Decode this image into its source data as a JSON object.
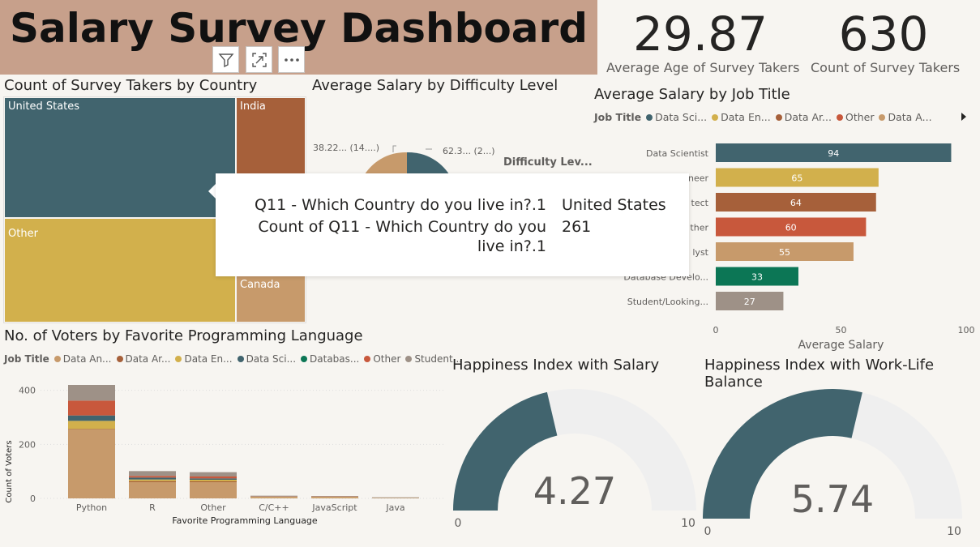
{
  "header": {
    "title": "Salary Survey Dashboard"
  },
  "toolbar": {
    "filter_icon": "filter-icon",
    "focus_icon": "focus-mode-icon",
    "more_icon": "more-options-icon"
  },
  "kpis": [
    {
      "value": "29.87",
      "label": "Average Age of Survey Takers"
    },
    {
      "value": "630",
      "label": "Count of Survey Takers"
    }
  ],
  "treemap": {
    "title": "Count of Survey Takers by Country",
    "tiles": [
      {
        "label": "United States",
        "color": "#41646e"
      },
      {
        "label": "India",
        "color": "#a6603a"
      },
      {
        "label": "Other",
        "color": "#d2b04c"
      },
      {
        "label": "Canada",
        "color": "#c79a6b"
      }
    ]
  },
  "tooltip": {
    "row1_label": "Q11 - Which Country do you live in?.1",
    "row1_value": "United States",
    "row2_label_line1": "Count of Q11 - Which Country do you",
    "row2_label_line2": "live in?.1",
    "row2_value": "261"
  },
  "pie": {
    "title": "Average Salary by Difficulty Level",
    "legend_title": "Difficulty Lev...",
    "label_left": "38.22... (14....)",
    "label_right": "62.3... (2...)",
    "colors": [
      "#41646e",
      "#c79a6b"
    ]
  },
  "job_bar": {
    "title": "Average Salary by Job Title",
    "legend_title": "Job Title",
    "legend": [
      {
        "name": "Data Sci...",
        "color": "#41646e"
      },
      {
        "name": "Data En...",
        "color": "#d2b04c"
      },
      {
        "name": "Data Ar...",
        "color": "#a6603a"
      },
      {
        "name": "Other",
        "color": "#c8583c"
      },
      {
        "name": "Data A...",
        "color": "#c79a6b"
      }
    ],
    "xlabel": "Average Salary",
    "ticks": [
      "0",
      "50",
      "100"
    ]
  },
  "lang_bar": {
    "title": "No. of Voters by Favorite Programming Language",
    "legend_title": "Job Title",
    "legend": [
      {
        "name": "Data An...",
        "color": "#c79a6b"
      },
      {
        "name": "Data Ar...",
        "color": "#a6603a"
      },
      {
        "name": "Data En...",
        "color": "#d2b04c"
      },
      {
        "name": "Data Sci...",
        "color": "#41646e"
      },
      {
        "name": "Databas...",
        "color": "#0c7655"
      },
      {
        "name": "Other",
        "color": "#c8583c"
      },
      {
        "name": "Student...",
        "color": "#9e9187"
      }
    ],
    "xlabel": "Favorite Programming Language",
    "ylabel": "Count of Voters",
    "yticks": [
      "400",
      "200",
      "0"
    ]
  },
  "gauges": [
    {
      "title_line1": "Happiness Index with Salary",
      "title_line2": "",
      "value_text": "4.27",
      "value": 4.27,
      "min": "0",
      "max": "10"
    },
    {
      "title_line1": "Happiness Index with Work-Life",
      "title_line2": "Balance",
      "value_text": "5.74",
      "value": 5.74,
      "min": "0",
      "max": "10"
    }
  ],
  "chart_data": [
    {
      "type": "bar",
      "orientation": "horizontal",
      "title": "Average Salary by Job Title",
      "categories": [
        "Data Scientist",
        "Data Engineer",
        "Data Architect",
        "Other",
        "Data Analyst",
        "Database Develo...",
        "Student/Looking..."
      ],
      "category_labels_visible": [
        "Data Scientist",
        "neer",
        "tect",
        "ther",
        "lyst",
        "Database Develo...",
        "Student/Looking..."
      ],
      "values": [
        94,
        65,
        64,
        60,
        55,
        33,
        27
      ],
      "value_labels": [
        "94",
        "65",
        "64",
        "60",
        "55",
        "33",
        "27"
      ],
      "colors": [
        "#41646e",
        "#d2b04c",
        "#a6603a",
        "#c8583c",
        "#c79a6b",
        "#0c7655",
        "#9e9187"
      ],
      "xlabel": "Average Salary",
      "xlim": [
        0,
        100
      ]
    },
    {
      "type": "bar",
      "stacked": true,
      "title": "No. of Voters by Favorite Programming Language",
      "categories": [
        "Python",
        "R",
        "Other",
        "C/C++",
        "JavaScript",
        "Java"
      ],
      "series": [
        {
          "name": "Data An...",
          "color": "#c79a6b",
          "values": [
            255,
            60,
            60,
            4,
            4,
            2
          ]
        },
        {
          "name": "Data Ar...",
          "color": "#a6603a",
          "values": [
            2,
            4,
            3,
            1,
            1,
            0
          ]
        },
        {
          "name": "Data En...",
          "color": "#d2b04c",
          "values": [
            30,
            6,
            6,
            1,
            1,
            0
          ]
        },
        {
          "name": "Data Sci...",
          "color": "#41646e",
          "values": [
            20,
            7,
            5,
            0,
            0,
            0
          ]
        },
        {
          "name": "Databas...",
          "color": "#0c7655",
          "values": [
            0,
            0,
            0,
            0,
            0,
            0
          ]
        },
        {
          "name": "Other",
          "color": "#c8583c",
          "values": [
            55,
            6,
            7,
            1,
            1,
            0
          ]
        },
        {
          "name": "Student...",
          "color": "#9e9187",
          "values": [
            58,
            18,
            16,
            3,
            2,
            2
          ]
        }
      ],
      "xlabel": "Favorite Programming Language",
      "ylabel": "Count of Voters",
      "ylim": [
        0,
        420
      ]
    },
    {
      "type": "pie",
      "title": "Average Salary by Difficulty Level",
      "labels": [
        "62.3... (2...)",
        "38.22... (14....)"
      ]
    }
  ]
}
